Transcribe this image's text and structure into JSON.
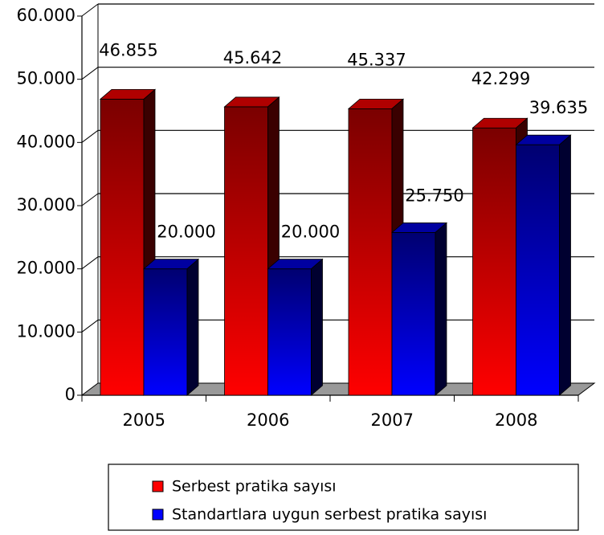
{
  "chart_data": {
    "type": "bar3d",
    "categories": [
      "2005",
      "2006",
      "2007",
      "2008"
    ],
    "series": [
      {
        "name": "Serbest pratika sayısı",
        "color": "#ff0000",
        "values": [
          46855,
          45642,
          45337,
          42299
        ],
        "value_labels": [
          "46.855",
          "45.642",
          "45.337",
          "42.299"
        ]
      },
      {
        "name": "Standartlara uygun serbest pratika sayısı",
        "color": "#0000ff",
        "values": [
          20000,
          20000,
          25750,
          39635
        ],
        "value_labels": [
          "20.000",
          "20.000",
          "25.750",
          "39.635"
        ]
      }
    ],
    "ylim": [
      0,
      60000
    ],
    "yticks": [
      0,
      {
        "value": 10000,
        "label": "10.000"
      },
      {
        "value": 20000,
        "label": "20.000"
      },
      {
        "value": 30000,
        "label": "30.000"
      },
      {
        "value": 40000,
        "label": "40.000"
      },
      {
        "value": 50000,
        "label": "50.000"
      },
      {
        "value": 60000,
        "label": "60.000"
      }
    ],
    "grid": true,
    "legend": "bottom"
  }
}
